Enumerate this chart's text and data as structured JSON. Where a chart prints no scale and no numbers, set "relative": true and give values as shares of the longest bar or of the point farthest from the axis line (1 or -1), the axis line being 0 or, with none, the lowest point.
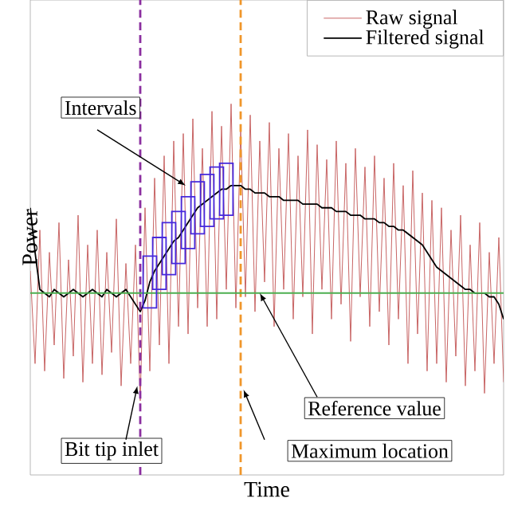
{
  "chart_data": {
    "type": "line",
    "relative": true,
    "xlabel": "Time",
    "ylabel": "Power",
    "legend": "top right",
    "marker": "none",
    "categories": [
      null,
      null,
      null,
      null,
      null,
      null,
      null,
      null,
      null,
      null,
      null,
      null,
      null,
      null,
      null,
      null,
      null,
      null,
      null,
      null,
      null,
      null,
      null,
      null,
      null,
      null,
      null,
      null,
      null,
      null,
      null,
      null,
      null,
      null,
      null,
      null,
      null,
      null,
      null,
      null,
      null,
      null,
      null,
      null,
      null,
      null,
      null,
      null,
      null,
      null,
      null,
      null,
      null,
      null,
      null,
      null,
      null,
      null,
      null,
      null,
      null,
      null,
      null,
      null,
      null,
      null,
      null,
      null,
      null,
      null,
      null,
      null,
      null,
      null,
      null,
      null,
      null,
      null,
      null,
      null,
      null,
      null,
      null,
      null,
      null,
      null,
      null,
      null,
      null,
      null,
      null,
      null,
      null,
      null,
      null,
      null,
      null,
      null,
      null,
      null
    ],
    "series": [
      {
        "name": "Raw signal",
        "color": "#c86464",
        "values": [
          0.55,
          0.3,
          0.66,
          0.28,
          0.6,
          0.35,
          0.68,
          0.26,
          0.58,
          0.32,
          0.7,
          0.25,
          0.62,
          0.3,
          0.66,
          0.27,
          0.6,
          0.33,
          0.69,
          0.24,
          0.57,
          0.3,
          0.62,
          0.2,
          0.72,
          0.28,
          0.8,
          0.35,
          0.86,
          0.3,
          0.9,
          0.4,
          0.92,
          0.38,
          0.96,
          0.45,
          0.88,
          0.4,
          0.98,
          0.42,
          0.94,
          0.5,
          1.0,
          0.45,
          0.93,
          0.48,
          0.97,
          0.44,
          0.9,
          0.52,
          0.95,
          0.4,
          0.88,
          0.5,
          0.92,
          0.42,
          0.86,
          0.48,
          0.93,
          0.38,
          0.89,
          0.5,
          0.85,
          0.42,
          0.9,
          0.46,
          0.84,
          0.36,
          0.88,
          0.48,
          0.83,
          0.4,
          0.86,
          0.44,
          0.8,
          0.35,
          0.84,
          0.42,
          0.78,
          0.3,
          0.82,
          0.38,
          0.76,
          0.28,
          0.74,
          0.3,
          0.72,
          0.25,
          0.66,
          0.32,
          0.7,
          0.24,
          0.62,
          0.28,
          0.68,
          0.22,
          0.6,
          0.3,
          0.64,
          0.25
        ]
      },
      {
        "name": "Filtered signal",
        "color": "#000000",
        "values": [
          0.72,
          0.6,
          0.5,
          0.49,
          0.48,
          0.5,
          0.49,
          0.48,
          0.49,
          0.5,
          0.49,
          0.48,
          0.49,
          0.5,
          0.49,
          0.48,
          0.5,
          0.49,
          0.48,
          0.49,
          0.5,
          0.48,
          0.46,
          0.44,
          0.47,
          0.52,
          0.55,
          0.57,
          0.59,
          0.61,
          0.63,
          0.64,
          0.66,
          0.68,
          0.7,
          0.72,
          0.73,
          0.74,
          0.75,
          0.76,
          0.77,
          0.77,
          0.78,
          0.78,
          0.78,
          0.77,
          0.77,
          0.76,
          0.76,
          0.76,
          0.75,
          0.75,
          0.75,
          0.74,
          0.74,
          0.74,
          0.74,
          0.73,
          0.73,
          0.73,
          0.73,
          0.72,
          0.72,
          0.72,
          0.71,
          0.71,
          0.71,
          0.7,
          0.7,
          0.7,
          0.69,
          0.69,
          0.69,
          0.68,
          0.68,
          0.67,
          0.67,
          0.66,
          0.66,
          0.65,
          0.64,
          0.63,
          0.62,
          0.6,
          0.58,
          0.56,
          0.55,
          0.54,
          0.53,
          0.52,
          0.51,
          0.5,
          0.5,
          0.49,
          0.49,
          0.49,
          0.48,
          0.48,
          0.46,
          0.42
        ]
      }
    ],
    "ref_lines": [
      {
        "axis": "y",
        "value": 0.49,
        "color": "#4caf50"
      }
    ],
    "annotations": [
      "Intervals",
      "Bit tip inlet",
      "Maximum location",
      "Reference value"
    ]
  }
}
